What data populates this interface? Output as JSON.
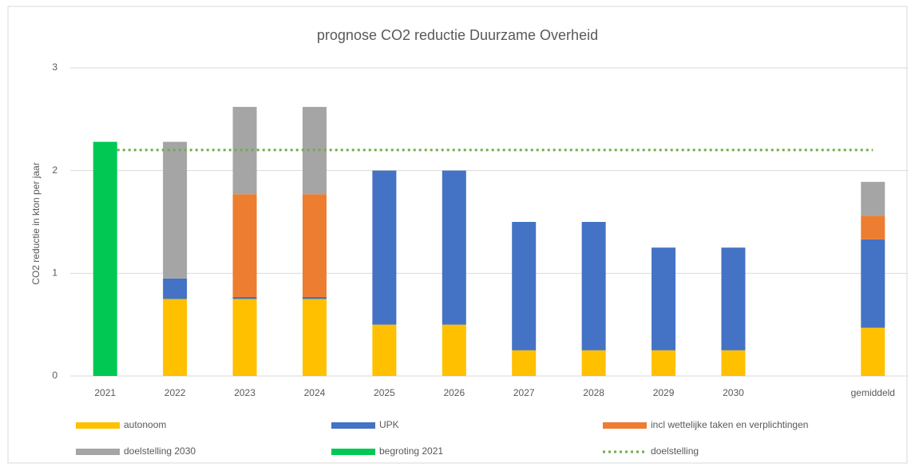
{
  "chart_data": {
    "type": "stacked_bar",
    "title": "prognose CO2 reductie Duurzame Overheid",
    "y_label": "CO2 reductie in kton per jaar",
    "categories": [
      "2021",
      "2022",
      "2023",
      "2024",
      "2025",
      "2026",
      "2027",
      "2028",
      "2029",
      "2030",
      null,
      "gemiddeld"
    ],
    "series": [
      {
        "name": "autonoom",
        "color": "#ffc000",
        "values": [
          null,
          0.75,
          0.75,
          0.75,
          0.5,
          0.5,
          0.25,
          0.25,
          0.25,
          0.25,
          null,
          0.47
        ]
      },
      {
        "name": "UPK",
        "color": "#4472c4",
        "values": [
          null,
          0.2,
          0.02,
          0.02,
          1.5,
          1.5,
          1.25,
          1.25,
          1.0,
          1.0,
          null,
          0.86
        ]
      },
      {
        "name": "incl wettelijke taken en verplichtingen",
        "color": "#ed7d31",
        "values": [
          null,
          null,
          1.0,
          1.0,
          null,
          null,
          null,
          null,
          null,
          null,
          null,
          0.23
        ]
      },
      {
        "name": "doelstelling 2030",
        "color": "#a5a5a5",
        "values": [
          null,
          1.33,
          0.85,
          0.85,
          null,
          null,
          null,
          null,
          null,
          null,
          null,
          0.33
        ]
      },
      {
        "name": "begroting 2021",
        "color": "#00c853",
        "values": [
          2.28,
          null,
          null,
          null,
          null,
          null,
          null,
          null,
          null,
          null,
          null,
          null
        ]
      }
    ],
    "reference_line": {
      "name": "doelstelling",
      "color": "#70ad47",
      "value": 2.2
    },
    "ylim": [
      0,
      3
    ],
    "yticks": [
      0,
      1,
      2,
      3
    ],
    "grid": true
  }
}
